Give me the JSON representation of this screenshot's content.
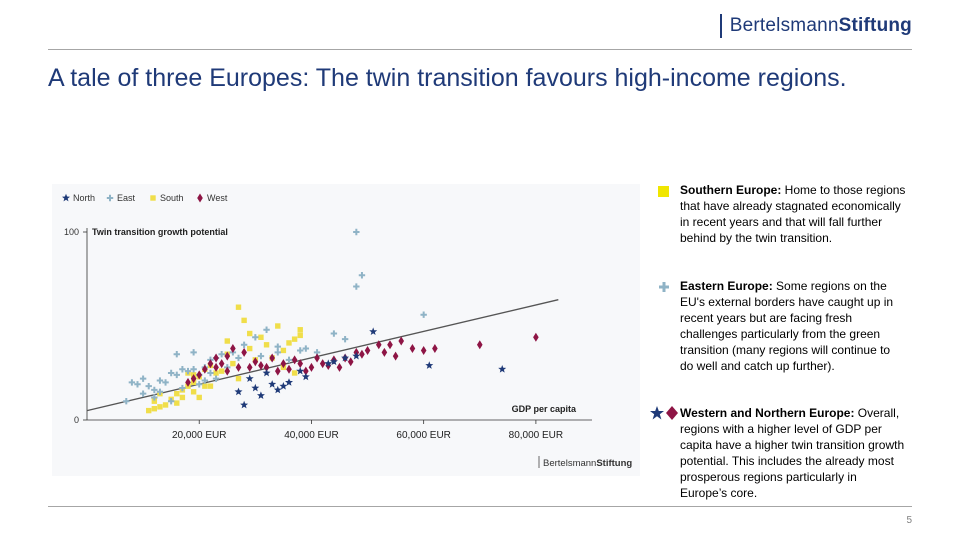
{
  "brand": {
    "regular": "Bertelsmann",
    "bold": "Stiftung"
  },
  "title": "A tale of three Europes: The twin transition favours high-income regions.",
  "page_number": "5",
  "notes": [
    {
      "marker": "square-yellow",
      "heading": "Southern Europe:",
      "text": " Home to those regions that have already stagnated economically in recent years and that will fall further behind by the twin transition."
    },
    {
      "marker": "plus-blue",
      "heading": "Eastern Europe:",
      "text": " Some regions on the EU's external borders have caught up in recent years but are facing fresh challenges particularly from the green transition (many regions will continue to do well and catch up further)."
    },
    {
      "marker": "star-diamond",
      "heading": "Western and Northern Europe:",
      "text": " Overall, regions with a higher level of GDP per capita have a higher twin transition growth potential. This includes the already most prosperous regions particularly in Europe’s core."
    }
  ],
  "colors": {
    "north": "#1f3a78",
    "east": "#8fb3c6",
    "south": "#f0de4a",
    "west": "#8e1545",
    "title": "#1f3a78",
    "trend": "#555555"
  },
  "chart_data": {
    "type": "scatter",
    "ylabel": "Twin transition growth potential",
    "xlabel": "GDP per capita",
    "xlim": [
      0,
      90000
    ],
    "ylim": [
      0,
      100
    ],
    "x_ticks": [
      20000,
      40000,
      60000,
      80000
    ],
    "x_tick_labels": [
      "20,000 EUR",
      "40,000 EUR",
      "60,000 EUR",
      "80,000 EUR"
    ],
    "y_ticks": [
      0,
      100
    ],
    "y_tick_labels": [
      "0",
      "100"
    ],
    "legend_position": "top-left",
    "credit": {
      "regular": "Bertelsmann",
      "bold": "Stiftung"
    },
    "trendline": [
      [
        0,
        5
      ],
      [
        84000,
        64
      ]
    ],
    "series": [
      {
        "name": "North",
        "marker": "star",
        "points": [
          [
            51000,
            47
          ],
          [
            61000,
            29
          ],
          [
            74000,
            27
          ],
          [
            28000,
            8
          ],
          [
            31000,
            13
          ],
          [
            34000,
            16
          ],
          [
            36000,
            20
          ],
          [
            29000,
            22
          ],
          [
            32000,
            25
          ],
          [
            46000,
            33
          ],
          [
            48000,
            34
          ],
          [
            44000,
            31
          ],
          [
            35000,
            18
          ],
          [
            30000,
            17
          ],
          [
            33000,
            19
          ],
          [
            38000,
            26
          ],
          [
            27000,
            15
          ],
          [
            39000,
            23
          ],
          [
            43000,
            30
          ]
        ]
      },
      {
        "name": "East",
        "marker": "plus",
        "points": [
          [
            48000,
            100
          ],
          [
            49000,
            77
          ],
          [
            48000,
            71
          ],
          [
            60000,
            56
          ],
          [
            7000,
            10
          ],
          [
            8000,
            20
          ],
          [
            9000,
            19
          ],
          [
            10000,
            22
          ],
          [
            11000,
            18
          ],
          [
            12000,
            16
          ],
          [
            13000,
            21
          ],
          [
            14000,
            20
          ],
          [
            15000,
            25
          ],
          [
            16000,
            24
          ],
          [
            17000,
            27
          ],
          [
            18000,
            26
          ],
          [
            19000,
            27
          ],
          [
            20000,
            24
          ],
          [
            21000,
            28
          ],
          [
            22000,
            32
          ],
          [
            24000,
            35
          ],
          [
            26000,
            36
          ],
          [
            28000,
            40
          ],
          [
            30000,
            44
          ],
          [
            32000,
            48
          ],
          [
            34000,
            39
          ],
          [
            36000,
            32
          ],
          [
            38000,
            37
          ],
          [
            44000,
            46
          ],
          [
            46000,
            43
          ],
          [
            16000,
            35
          ],
          [
            19000,
            36
          ],
          [
            23000,
            33
          ],
          [
            10000,
            14
          ],
          [
            12000,
            12
          ],
          [
            15000,
            10
          ],
          [
            17000,
            17
          ],
          [
            20000,
            19
          ],
          [
            25000,
            28
          ],
          [
            21000,
            21
          ],
          [
            13000,
            15
          ],
          [
            23000,
            22
          ],
          [
            22000,
            25
          ],
          [
            27000,
            33
          ],
          [
            31000,
            34
          ],
          [
            34000,
            36
          ],
          [
            39000,
            38
          ],
          [
            41000,
            36
          ]
        ]
      },
      {
        "name": "South",
        "marker": "square",
        "points": [
          [
            27000,
            60
          ],
          [
            28000,
            53
          ],
          [
            29000,
            46
          ],
          [
            31000,
            44
          ],
          [
            38000,
            48
          ],
          [
            38000,
            45
          ],
          [
            37000,
            43
          ],
          [
            36000,
            41
          ],
          [
            35000,
            37
          ],
          [
            33000,
            33
          ],
          [
            30000,
            32
          ],
          [
            32000,
            40
          ],
          [
            25000,
            42
          ],
          [
            26000,
            30
          ],
          [
            25000,
            35
          ],
          [
            24000,
            26
          ],
          [
            23000,
            25
          ],
          [
            22000,
            29
          ],
          [
            21000,
            27
          ],
          [
            20000,
            23
          ],
          [
            19000,
            20
          ],
          [
            18000,
            18
          ],
          [
            17000,
            16
          ],
          [
            16000,
            14
          ],
          [
            15000,
            11
          ],
          [
            14000,
            8
          ],
          [
            13000,
            7
          ],
          [
            12000,
            6
          ],
          [
            11000,
            5
          ],
          [
            12000,
            10
          ],
          [
            13000,
            14
          ],
          [
            17000,
            12
          ],
          [
            16000,
            9
          ],
          [
            19000,
            15
          ],
          [
            20000,
            12
          ],
          [
            21000,
            18
          ],
          [
            18000,
            25
          ],
          [
            19000,
            24
          ],
          [
            22000,
            18
          ],
          [
            27000,
            22
          ],
          [
            29000,
            38
          ],
          [
            34000,
            50
          ],
          [
            37000,
            25
          ],
          [
            35000,
            28
          ]
        ]
      },
      {
        "name": "West",
        "marker": "diamond",
        "points": [
          [
            25000,
            34
          ],
          [
            23000,
            33
          ],
          [
            26000,
            38
          ],
          [
            28000,
            36
          ],
          [
            30000,
            31
          ],
          [
            29000,
            28
          ],
          [
            32000,
            28
          ],
          [
            34000,
            26
          ],
          [
            36000,
            27
          ],
          [
            38000,
            30
          ],
          [
            40000,
            28
          ],
          [
            42000,
            30
          ],
          [
            44000,
            32
          ],
          [
            46000,
            33
          ],
          [
            48000,
            36
          ],
          [
            50000,
            37
          ],
          [
            52000,
            40
          ],
          [
            54000,
            40
          ],
          [
            56000,
            42
          ],
          [
            58000,
            38
          ],
          [
            60000,
            37
          ],
          [
            62000,
            38
          ],
          [
            70000,
            40
          ],
          [
            80000,
            44
          ],
          [
            22000,
            30
          ],
          [
            24000,
            30
          ],
          [
            27000,
            28
          ],
          [
            33000,
            33
          ],
          [
            35000,
            30
          ],
          [
            37000,
            32
          ],
          [
            41000,
            33
          ],
          [
            43000,
            29
          ],
          [
            45000,
            28
          ],
          [
            47000,
            31
          ],
          [
            49000,
            35
          ],
          [
            21000,
            27
          ],
          [
            20000,
            24
          ],
          [
            19000,
            22
          ],
          [
            18000,
            20
          ],
          [
            23000,
            28
          ],
          [
            25000,
            26
          ],
          [
            31000,
            29
          ],
          [
            39000,
            26
          ],
          [
            53000,
            36
          ],
          [
            55000,
            34
          ]
        ]
      }
    ]
  }
}
